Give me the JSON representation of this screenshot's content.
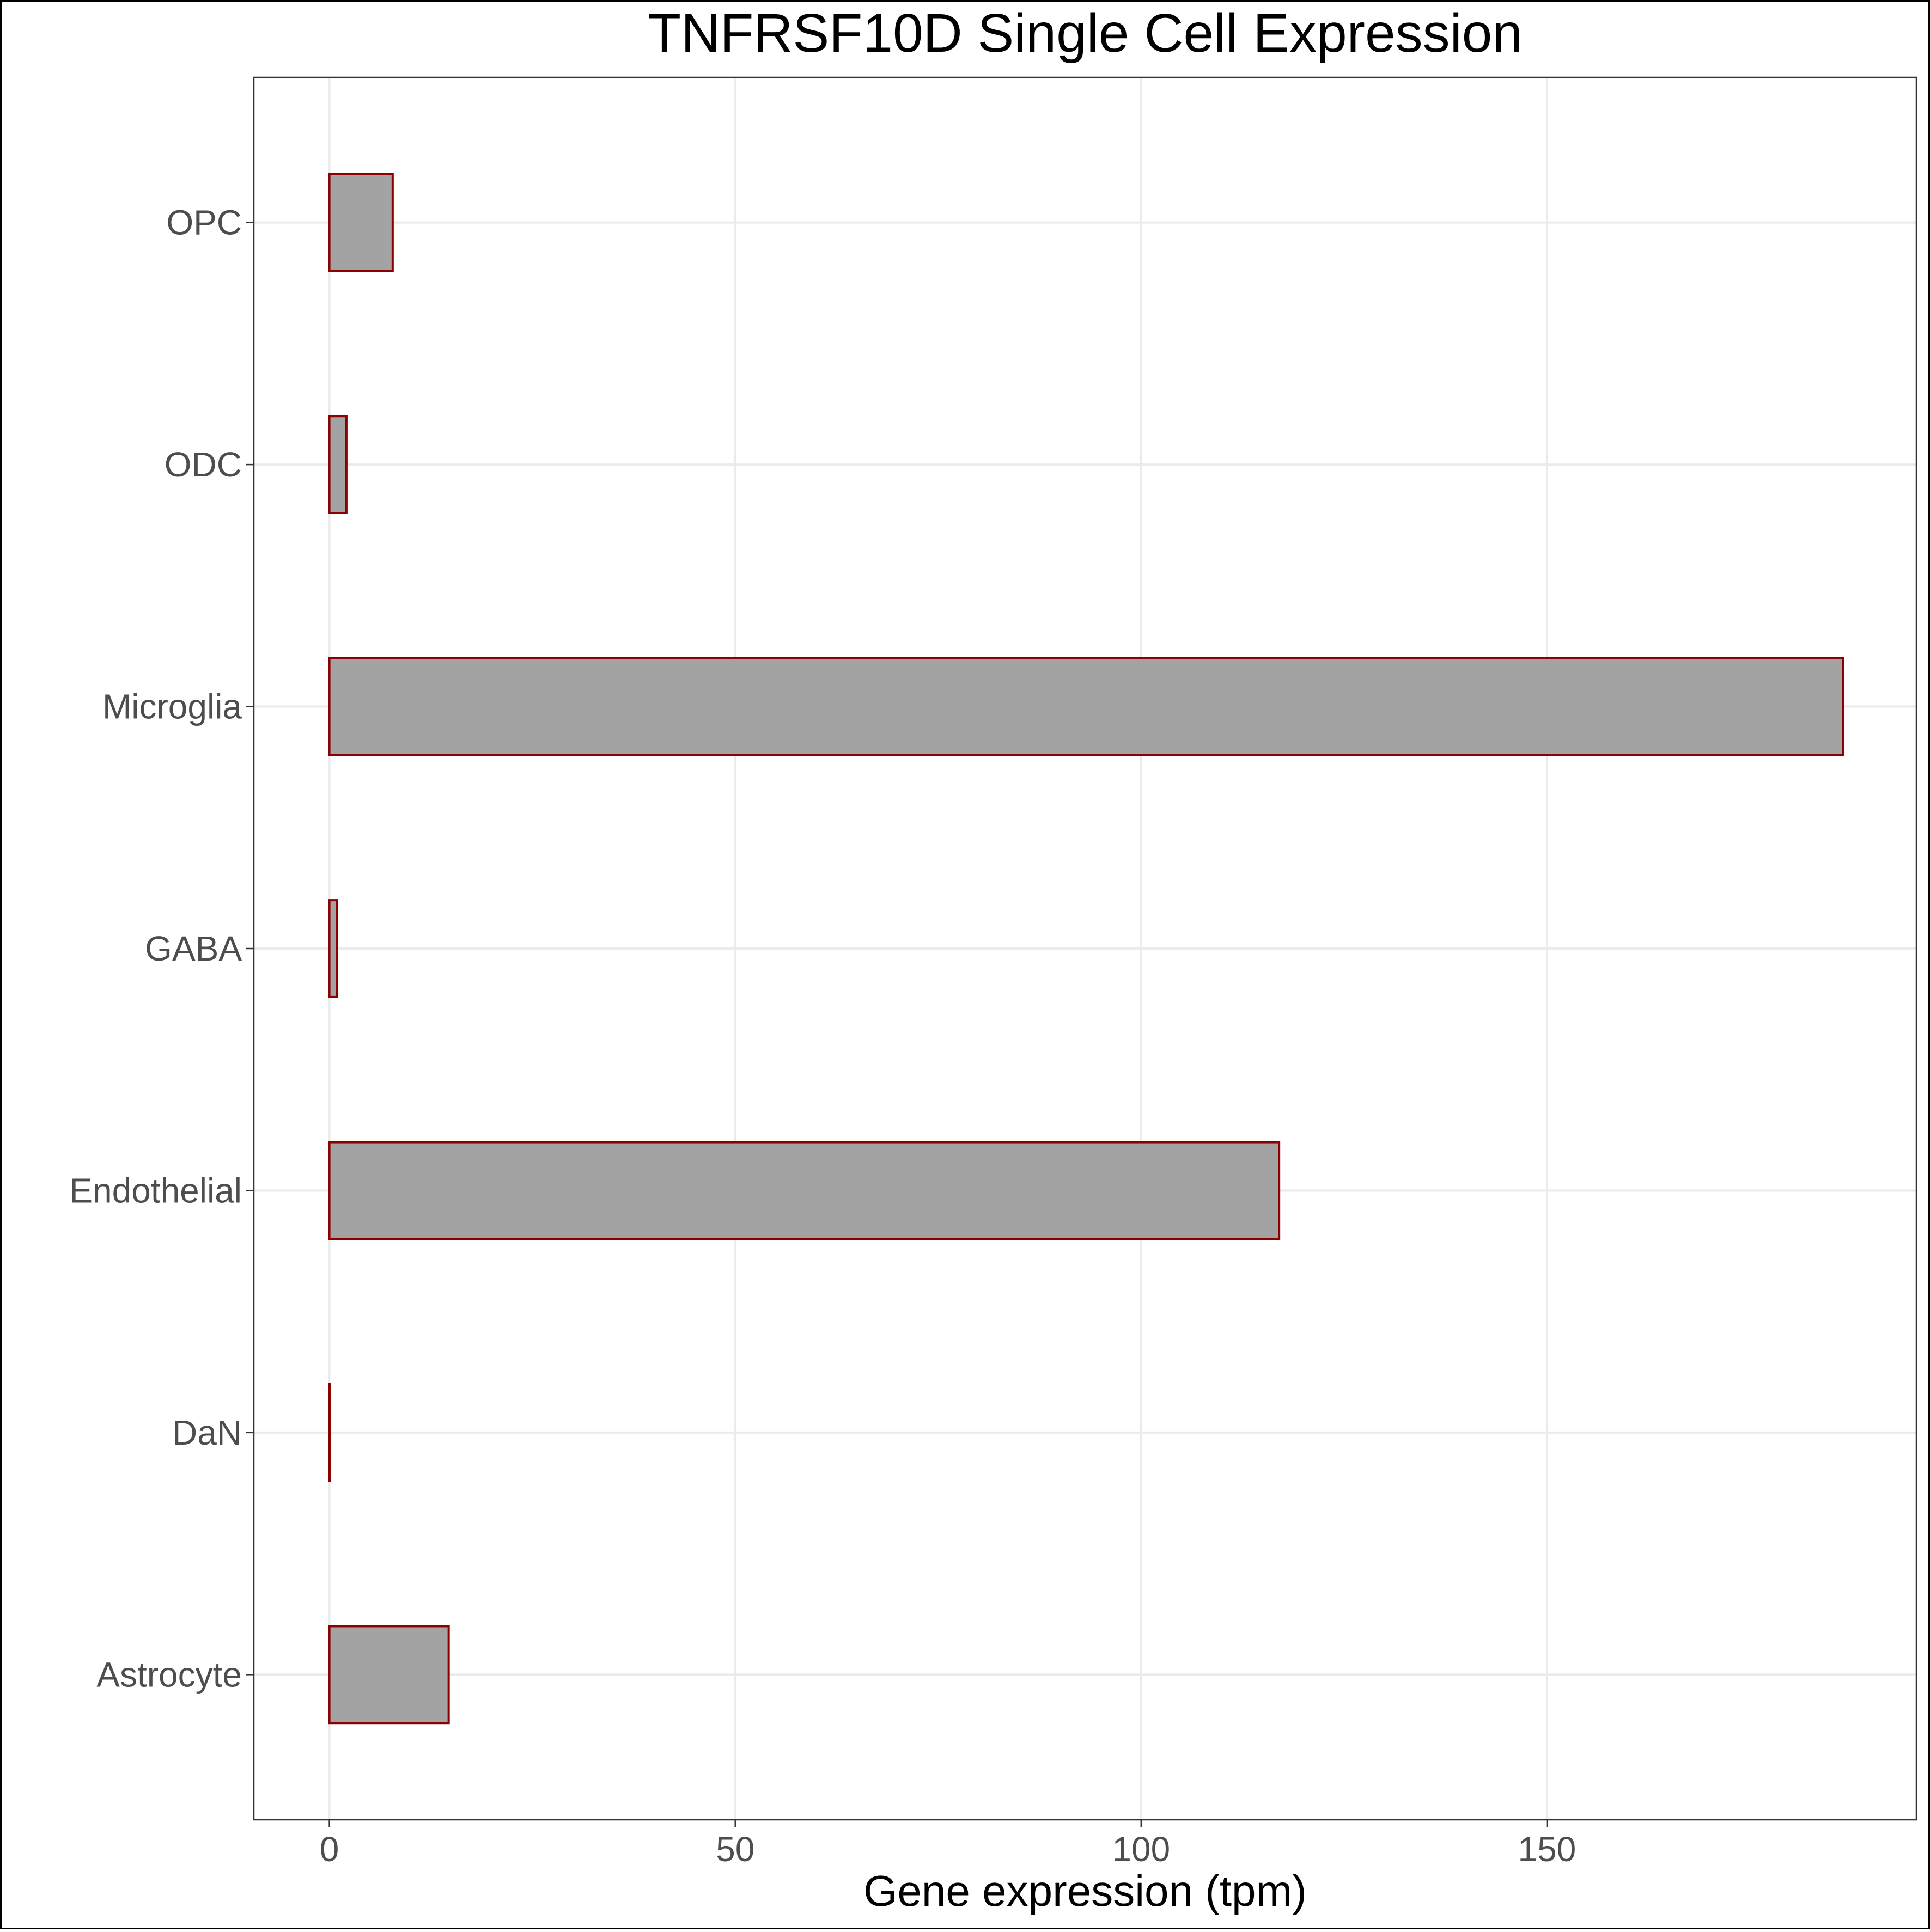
{
  "chart_data": {
    "type": "bar",
    "orientation": "horizontal",
    "title": "TNFRSF10D Single Cell Expression",
    "xlabel": "Gene expression (tpm)",
    "ylabel": "",
    "categories": [
      "Astrocyte",
      "DaN",
      "Endothelial",
      "GABA",
      "Microglia",
      "ODC",
      "OPC"
    ],
    "values": [
      14.7,
      0.05,
      117,
      0.9,
      186.5,
      2.1,
      7.8
    ],
    "xlim": [
      -9.3,
      195.5
    ],
    "xticks": [
      0,
      50,
      100,
      150
    ],
    "xtick_labels": [
      "0",
      "50",
      "100",
      "150"
    ],
    "grid": true,
    "legend": "none",
    "colors": {
      "bar_fill": "#a3a3a3",
      "bar_stroke": "#8b0000",
      "grid": "#ebebeb",
      "frame": "#333333",
      "tick_text": "#4d4d4d",
      "title_text": "#000000"
    }
  }
}
